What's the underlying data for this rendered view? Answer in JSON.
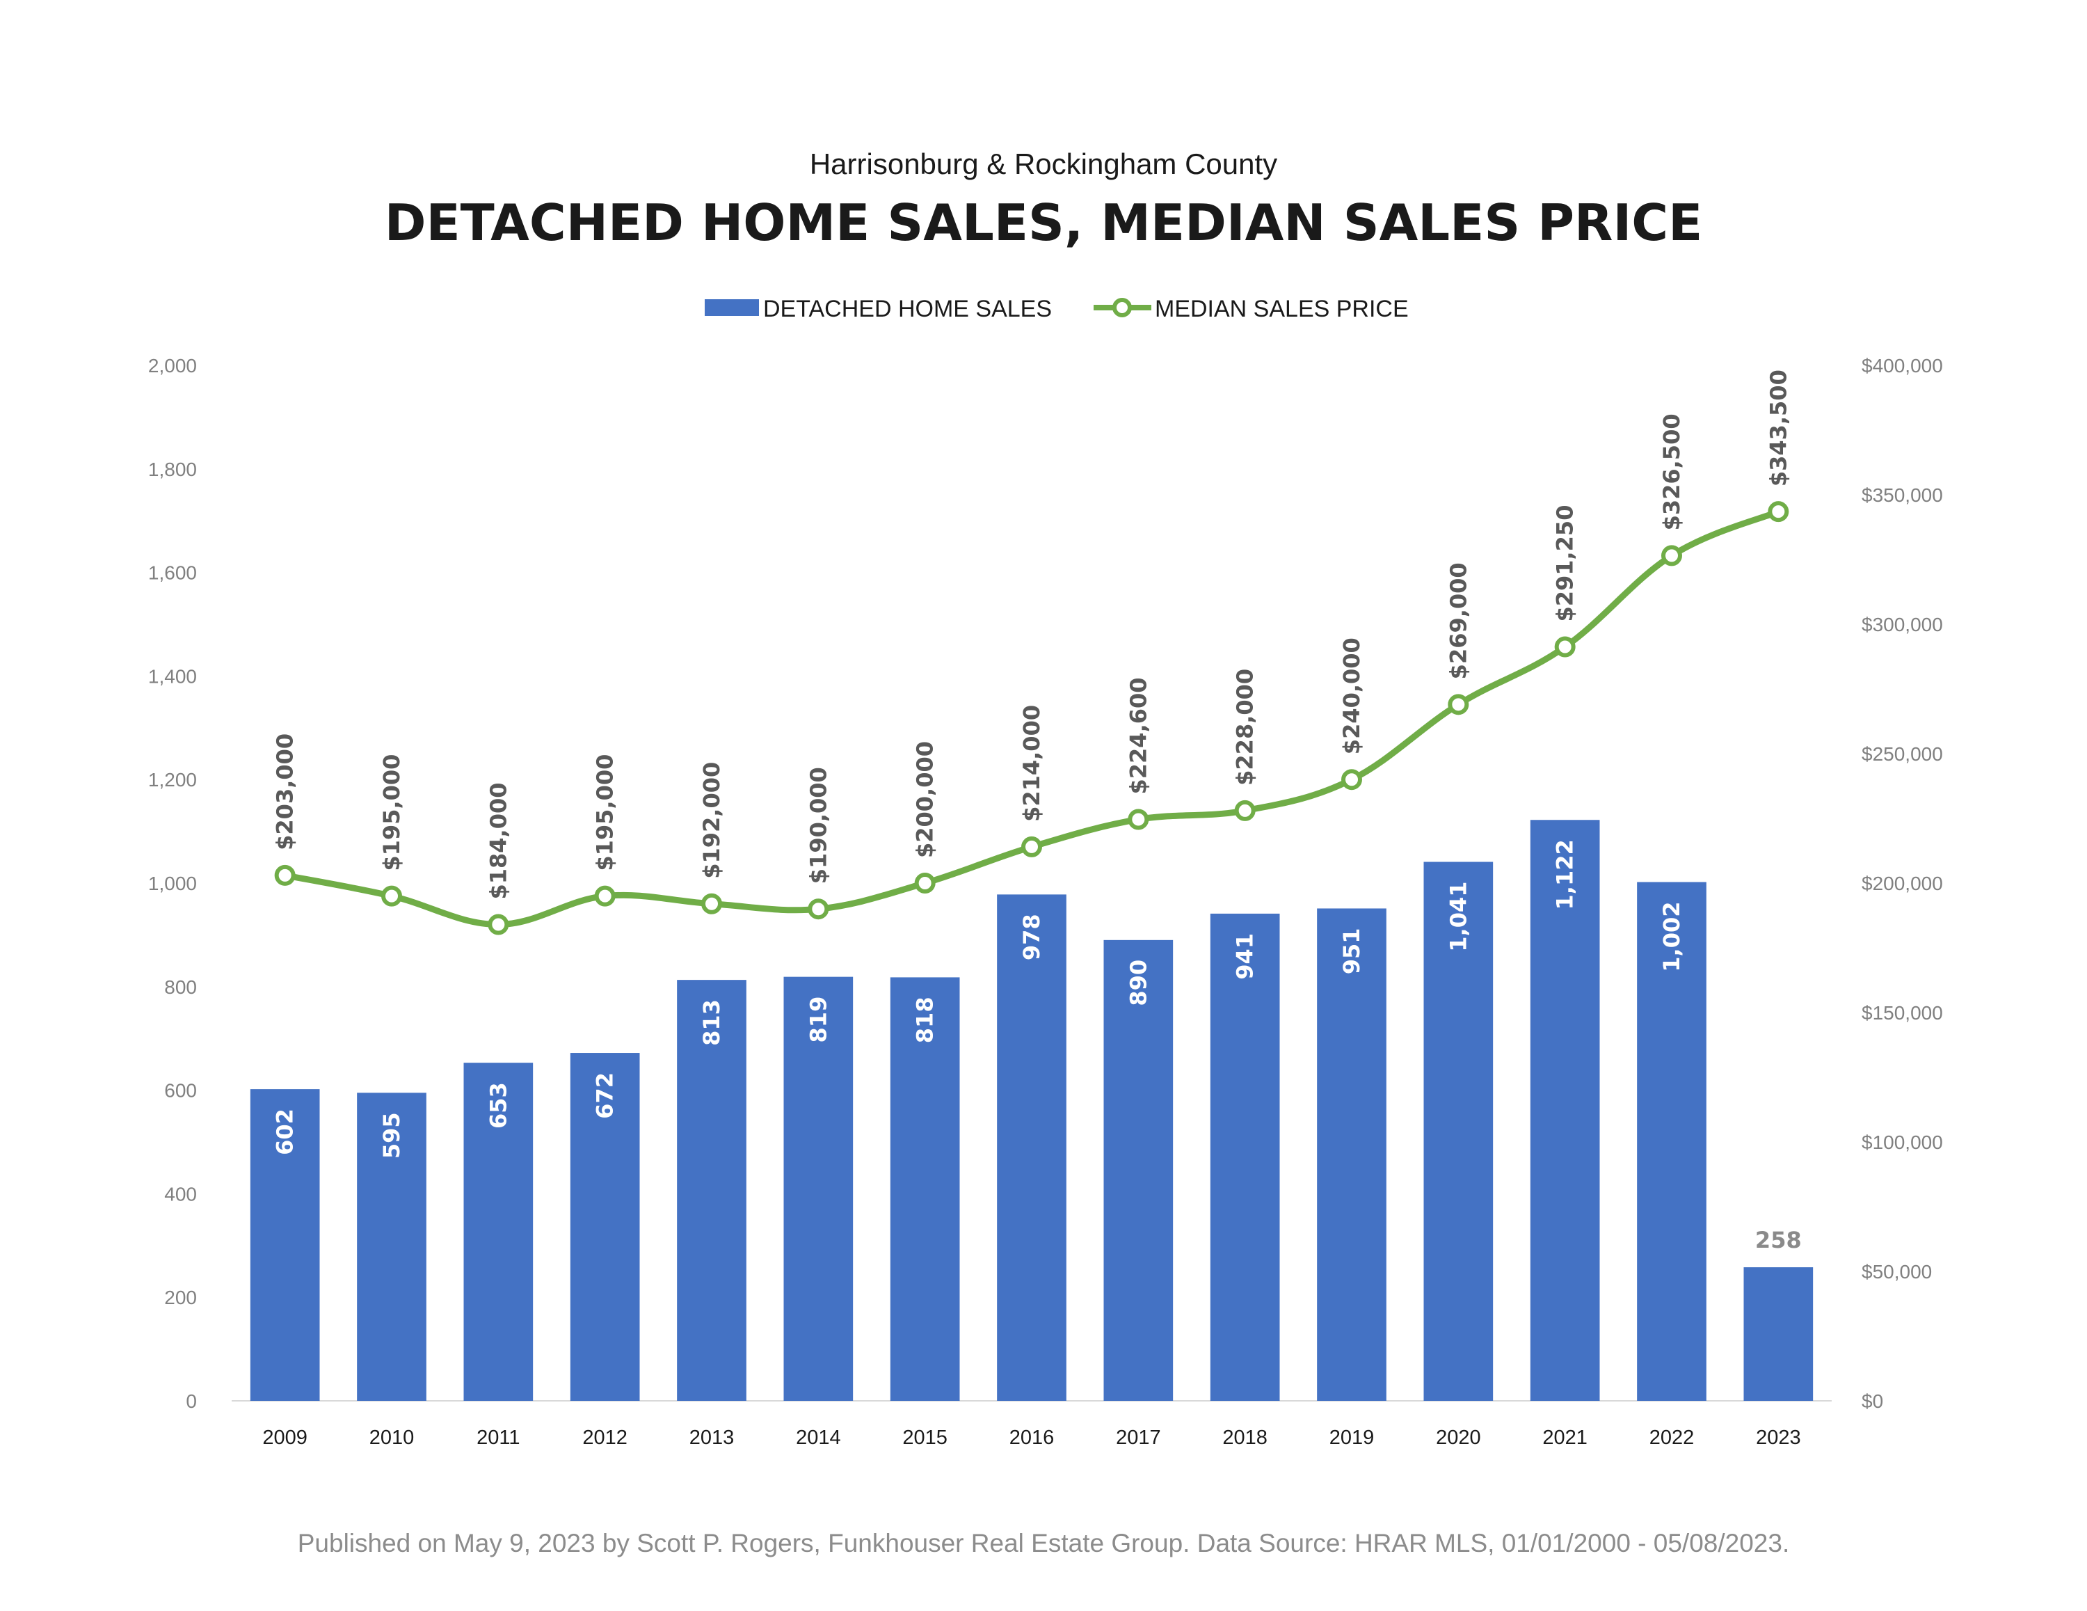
{
  "chart_data": {
    "type": "bar",
    "subtitle": "Harrisonburg & Rockingham County",
    "title": "DETACHED HOME SALES, MEDIAN SALES PRICE",
    "categories": [
      "2009",
      "2010",
      "2011",
      "2012",
      "2013",
      "2014",
      "2015",
      "2016",
      "2017",
      "2018",
      "2019",
      "2020",
      "2021",
      "2022",
      "2023"
    ],
    "series": [
      {
        "name": "DETACHED HOME SALES",
        "type": "bar",
        "axis": "left",
        "color": "#4472C4",
        "values": [
          602,
          595,
          653,
          672,
          813,
          819,
          818,
          978,
          890,
          941,
          951,
          1041,
          1122,
          1002,
          258
        ],
        "labels": [
          "602",
          "595",
          "653",
          "672",
          "813",
          "819",
          "818",
          "978",
          "890",
          "941",
          "951",
          "1,041",
          "1,122",
          "1,002",
          "258"
        ]
      },
      {
        "name": "MEDIAN SALES PRICE",
        "type": "line",
        "axis": "right",
        "color": "#70AD47",
        "values": [
          203000,
          195000,
          184000,
          195000,
          192000,
          190000,
          200000,
          214000,
          224600,
          228000,
          240000,
          269000,
          291250,
          326500,
          343500
        ],
        "labels": [
          "$203,000",
          "$195,000",
          "$184,000",
          "$195,000",
          "$192,000",
          "$190,000",
          "$200,000",
          "$214,000",
          "$224,600",
          "$228,000",
          "$240,000",
          "$269,000",
          "$291,250",
          "$326,500",
          "$343,500"
        ]
      }
    ],
    "y_left": {
      "range": [
        0,
        2000
      ],
      "ticks": [
        0,
        200,
        400,
        600,
        800,
        1000,
        1200,
        1400,
        1600,
        1800,
        2000
      ],
      "tick_labels": [
        "0",
        "200",
        "400",
        "600",
        "800",
        "1,000",
        "1,200",
        "1,400",
        "1,600",
        "1,800",
        "2,000"
      ]
    },
    "y_right": {
      "range": [
        0,
        400000
      ],
      "ticks": [
        0,
        50000,
        100000,
        150000,
        200000,
        250000,
        300000,
        350000,
        400000
      ],
      "tick_labels": [
        "$0",
        "$50,000",
        "$100,000",
        "$150,000",
        "$200,000",
        "$250,000",
        "$300,000",
        "$350,000",
        "$400,000"
      ]
    },
    "grid": false,
    "legend_position": "top-center"
  },
  "footer": "Published on May 9, 2023 by Scott P. Rogers, Funkhouser Real Estate Group. Data Source: HRAR MLS, 01/01/2000 - 05/08/2023."
}
